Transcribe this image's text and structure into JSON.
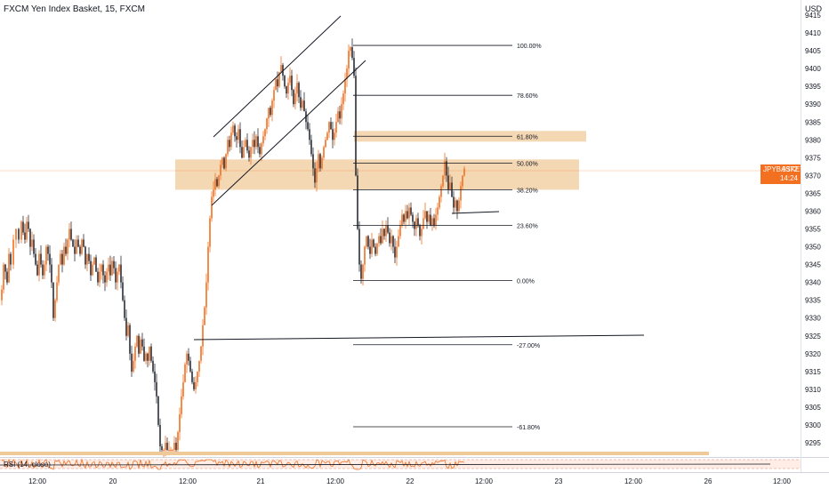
{
  "header": {
    "title": "FXCM Yen Index Basket, 15, FXCM",
    "currency": "USD"
  },
  "price_tag": {
    "symbol": "JPYBASKET",
    "price": "9372",
    "countdown": "14:24"
  },
  "rsi": {
    "label": "RSI (14, close)"
  },
  "colors": {
    "up": "#f37021",
    "down": "#2a2e39",
    "zone": "#f0c999",
    "accent": "#f37021"
  },
  "chart_data": {
    "type": "candlestick",
    "y_ticks": [
      9415,
      9410,
      9405,
      9400,
      9395,
      9390,
      9385,
      9380,
      9375,
      9370,
      9365,
      9360,
      9355,
      9350,
      9345,
      9340,
      9335,
      9330,
      9325,
      9320,
      9315,
      9310,
      9305,
      9300,
      9295
    ],
    "x_ticks": [
      "12:00",
      "20",
      "12:00",
      "21",
      "12:00",
      "22",
      "12:00",
      "23",
      "12:00",
      "26",
      "12:00"
    ],
    "ylim": [
      9292,
      9418
    ],
    "current_price": 9372,
    "fib_levels": [
      {
        "label": "100.00%",
        "value": 9406.5
      },
      {
        "label": "78.60%",
        "value": 9392.5
      },
      {
        "label": "61.80%",
        "value": 9381
      },
      {
        "label": "50.00%",
        "value": 9373.5
      },
      {
        "label": "38.20%",
        "value": 9366
      },
      {
        "label": "23.60%",
        "value": 9356
      },
      {
        "label": "0.00%",
        "value": 9340.5
      },
      {
        "label": "-27.00%",
        "value": 9322.5
      },
      {
        "label": "-61.80%",
        "value": 9299.5
      }
    ],
    "zones": [
      {
        "from": 9366,
        "to": 9374.5
      },
      {
        "from": 9379.5,
        "to": 9382.5
      }
    ],
    "candle_path": [
      [
        0,
        9335
      ],
      [
        2,
        9338
      ],
      [
        4,
        9345
      ],
      [
        6,
        9343
      ],
      [
        8,
        9340
      ],
      [
        10,
        9348
      ],
      [
        12,
        9345
      ],
      [
        15,
        9352
      ],
      [
        18,
        9355
      ],
      [
        21,
        9352
      ],
      [
        24,
        9357
      ],
      [
        26,
        9354
      ],
      [
        28,
        9352
      ],
      [
        30,
        9357
      ],
      [
        32,
        9355
      ],
      [
        34,
        9350
      ],
      [
        36,
        9352
      ],
      [
        38,
        9348
      ],
      [
        40,
        9345
      ],
      [
        42,
        9342
      ],
      [
        44,
        9348
      ],
      [
        46,
        9345
      ],
      [
        48,
        9342
      ],
      [
        50,
        9345
      ],
      [
        52,
        9350
      ],
      [
        54,
        9348
      ],
      [
        56,
        9345
      ],
      [
        58,
        9340
      ],
      [
        60,
        9330
      ],
      [
        62,
        9335
      ],
      [
        64,
        9340
      ],
      [
        66,
        9345
      ],
      [
        68,
        9348
      ],
      [
        70,
        9345
      ],
      [
        72,
        9350
      ],
      [
        74,
        9348
      ],
      [
        76,
        9352
      ],
      [
        78,
        9355
      ],
      [
        80,
        9352
      ],
      [
        82,
        9350
      ],
      [
        84,
        9348
      ],
      [
        86,
        9352
      ],
      [
        88,
        9350
      ],
      [
        90,
        9348
      ],
      [
        92,
        9352
      ],
      [
        94,
        9350
      ],
      [
        96,
        9345
      ],
      [
        98,
        9348
      ],
      [
        100,
        9346
      ],
      [
        102,
        9342
      ],
      [
        104,
        9345
      ],
      [
        106,
        9347
      ],
      [
        108,
        9343
      ],
      [
        110,
        9340
      ],
      [
        112,
        9343
      ],
      [
        114,
        9345
      ],
      [
        116,
        9342
      ],
      [
        118,
        9340
      ],
      [
        120,
        9343
      ],
      [
        122,
        9345
      ],
      [
        124,
        9342
      ],
      [
        126,
        9346
      ],
      [
        128,
        9344
      ],
      [
        130,
        9340
      ],
      [
        132,
        9343
      ],
      [
        134,
        9345
      ],
      [
        136,
        9340
      ],
      [
        138,
        9335
      ],
      [
        140,
        9330
      ],
      [
        142,
        9325
      ],
      [
        144,
        9328
      ],
      [
        146,
        9320
      ],
      [
        148,
        9315
      ],
      [
        150,
        9318
      ],
      [
        152,
        9322
      ],
      [
        154,
        9325
      ],
      [
        156,
        9320
      ],
      [
        158,
        9324
      ],
      [
        160,
        9322
      ],
      [
        162,
        9318
      ],
      [
        164,
        9320
      ],
      [
        166,
        9318
      ],
      [
        168,
        9322
      ],
      [
        170,
        9318
      ],
      [
        172,
        9315
      ],
      [
        174,
        9312
      ],
      [
        176,
        9308
      ],
      [
        178,
        9300
      ],
      [
        180,
        9294
      ],
      [
        182,
        9293
      ],
      [
        184,
        9293
      ],
      [
        186,
        9295
      ],
      [
        188,
        9293
      ],
      [
        190,
        9293
      ],
      [
        192,
        9293
      ],
      [
        194,
        9293
      ],
      [
        196,
        9295
      ],
      [
        198,
        9293
      ],
      [
        200,
        9298
      ],
      [
        202,
        9303
      ],
      [
        204,
        9308
      ],
      [
        206,
        9312
      ],
      [
        208,
        9317
      ],
      [
        210,
        9320
      ],
      [
        212,
        9318
      ],
      [
        214,
        9315
      ],
      [
        216,
        9312
      ],
      [
        218,
        9310
      ],
      [
        220,
        9312
      ],
      [
        222,
        9315
      ],
      [
        224,
        9318
      ],
      [
        226,
        9322
      ],
      [
        228,
        9328
      ],
      [
        230,
        9333
      ],
      [
        232,
        9340
      ],
      [
        234,
        9350
      ],
      [
        236,
        9358
      ],
      [
        238,
        9364
      ],
      [
        240,
        9366
      ],
      [
        242,
        9369
      ],
      [
        244,
        9367
      ],
      [
        246,
        9370
      ],
      [
        248,
        9373
      ],
      [
        250,
        9375
      ],
      [
        252,
        9372
      ],
      [
        254,
        9376
      ],
      [
        256,
        9380
      ],
      [
        258,
        9378
      ],
      [
        260,
        9382
      ],
      [
        262,
        9384
      ],
      [
        264,
        9381
      ],
      [
        266,
        9380
      ],
      [
        268,
        9383
      ],
      [
        270,
        9378
      ],
      [
        272,
        9375
      ],
      [
        274,
        9378
      ],
      [
        276,
        9380
      ],
      [
        278,
        9377
      ],
      [
        280,
        9375
      ],
      [
        282,
        9378
      ],
      [
        284,
        9380
      ],
      [
        286,
        9378
      ],
      [
        288,
        9381
      ],
      [
        290,
        9378
      ],
      [
        292,
        9376
      ],
      [
        294,
        9379
      ],
      [
        296,
        9381
      ],
      [
        298,
        9383
      ],
      [
        300,
        9386
      ],
      [
        302,
        9389
      ],
      [
        304,
        9387
      ],
      [
        306,
        9391
      ],
      [
        308,
        9394
      ],
      [
        310,
        9397
      ],
      [
        312,
        9395
      ],
      [
        314,
        9399
      ],
      [
        316,
        9401
      ],
      [
        318,
        9398
      ],
      [
        320,
        9395
      ],
      [
        322,
        9393
      ],
      [
        324,
        9396
      ],
      [
        326,
        9398
      ],
      [
        328,
        9394
      ],
      [
        330,
        9390
      ],
      [
        332,
        9393
      ],
      [
        334,
        9396
      ],
      [
        336,
        9392
      ],
      [
        338,
        9389
      ],
      [
        340,
        9391
      ],
      [
        342,
        9388
      ],
      [
        344,
        9385
      ],
      [
        346,
        9383
      ],
      [
        348,
        9380
      ],
      [
        350,
        9376
      ],
      [
        352,
        9372
      ],
      [
        354,
        9368
      ],
      [
        356,
        9372
      ],
      [
        358,
        9376
      ],
      [
        360,
        9372
      ],
      [
        362,
        9375
      ],
      [
        364,
        9378
      ],
      [
        366,
        9380
      ],
      [
        368,
        9382
      ],
      [
        370,
        9385
      ],
      [
        372,
        9383
      ],
      [
        374,
        9380
      ],
      [
        376,
        9382
      ],
      [
        378,
        9385
      ],
      [
        380,
        9388
      ],
      [
        382,
        9386
      ],
      [
        384,
        9390
      ],
      [
        386,
        9393
      ],
      [
        388,
        9397
      ],
      [
        390,
        9400
      ],
      [
        392,
        9405
      ],
      [
        394,
        9406
      ],
      [
        396,
        9403
      ],
      [
        398,
        9398
      ],
      [
        400,
        9370
      ],
      [
        402,
        9355
      ],
      [
        404,
        9345
      ],
      [
        406,
        9341
      ],
      [
        408,
        9345
      ],
      [
        410,
        9350
      ],
      [
        412,
        9353
      ],
      [
        414,
        9350
      ],
      [
        416,
        9348
      ],
      [
        418,
        9352
      ],
      [
        420,
        9350
      ],
      [
        422,
        9348
      ],
      [
        424,
        9351
      ],
      [
        426,
        9353
      ],
      [
        428,
        9351
      ],
      [
        430,
        9355
      ],
      [
        432,
        9353
      ],
      [
        434,
        9356
      ],
      [
        436,
        9354
      ],
      [
        438,
        9351
      ],
      [
        440,
        9353
      ],
      [
        442,
        9350
      ],
      [
        444,
        9347
      ],
      [
        446,
        9350
      ],
      [
        448,
        9353
      ],
      [
        450,
        9356
      ],
      [
        452,
        9359
      ],
      [
        454,
        9357
      ],
      [
        456,
        9360
      ],
      [
        458,
        9358
      ],
      [
        460,
        9361
      ],
      [
        462,
        9359
      ],
      [
        464,
        9357
      ],
      [
        466,
        9355
      ],
      [
        468,
        9358
      ],
      [
        470,
        9356
      ],
      [
        472,
        9353
      ],
      [
        474,
        9355
      ],
      [
        476,
        9358
      ],
      [
        478,
        9360
      ],
      [
        480,
        9357
      ],
      [
        482,
        9359
      ],
      [
        484,
        9356
      ],
      [
        486,
        9358
      ],
      [
        488,
        9356
      ],
      [
        490,
        9359
      ],
      [
        492,
        9361
      ],
      [
        494,
        9364
      ],
      [
        496,
        9367
      ],
      [
        498,
        9370
      ],
      [
        500,
        9374
      ],
      [
        502,
        9370
      ],
      [
        504,
        9366
      ],
      [
        506,
        9368
      ],
      [
        508,
        9364
      ],
      [
        510,
        9361
      ],
      [
        512,
        9363
      ],
      [
        514,
        9360
      ],
      [
        516,
        9363
      ],
      [
        518,
        9367
      ],
      [
        520,
        9370
      ],
      [
        522,
        9372
      ]
    ]
  }
}
